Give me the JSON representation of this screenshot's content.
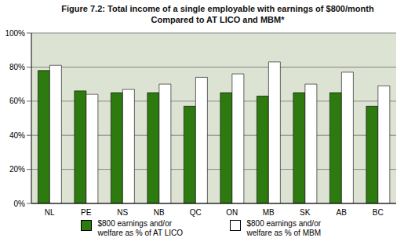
{
  "chart_data": {
    "type": "bar",
    "title": "Figure 7.2: Total income of a single employable with earnings of $800/month",
    "subtitle": "Compared to AT LICO and MBM*",
    "categories": [
      "NL",
      "PE",
      "NS",
      "NB",
      "QC",
      "ON",
      "MB",
      "SK",
      "AB",
      "BC"
    ],
    "series": [
      {
        "name": "$800 earnings and/or welfare as % of AT LICO",
        "color": "#2d7a0f",
        "values": [
          78,
          66,
          65,
          65,
          57,
          65,
          63,
          65,
          65,
          57
        ]
      },
      {
        "name": "$800 earnings and/or welfare as % of MBM",
        "color": "#ffffff",
        "values": [
          81,
          64,
          67,
          70,
          74,
          76,
          83,
          70,
          77,
          69
        ]
      }
    ],
    "ylim": [
      0,
      100
    ],
    "yticks": [
      {
        "value": 0,
        "label": "0%"
      },
      {
        "value": 20,
        "label": "20%"
      },
      {
        "value": 40,
        "label": "40%"
      },
      {
        "value": 60,
        "label": "60%"
      },
      {
        "value": 80,
        "label": "80%"
      },
      {
        "value": 100,
        "label": "100%"
      }
    ],
    "grid": true,
    "legend": "bottom"
  }
}
